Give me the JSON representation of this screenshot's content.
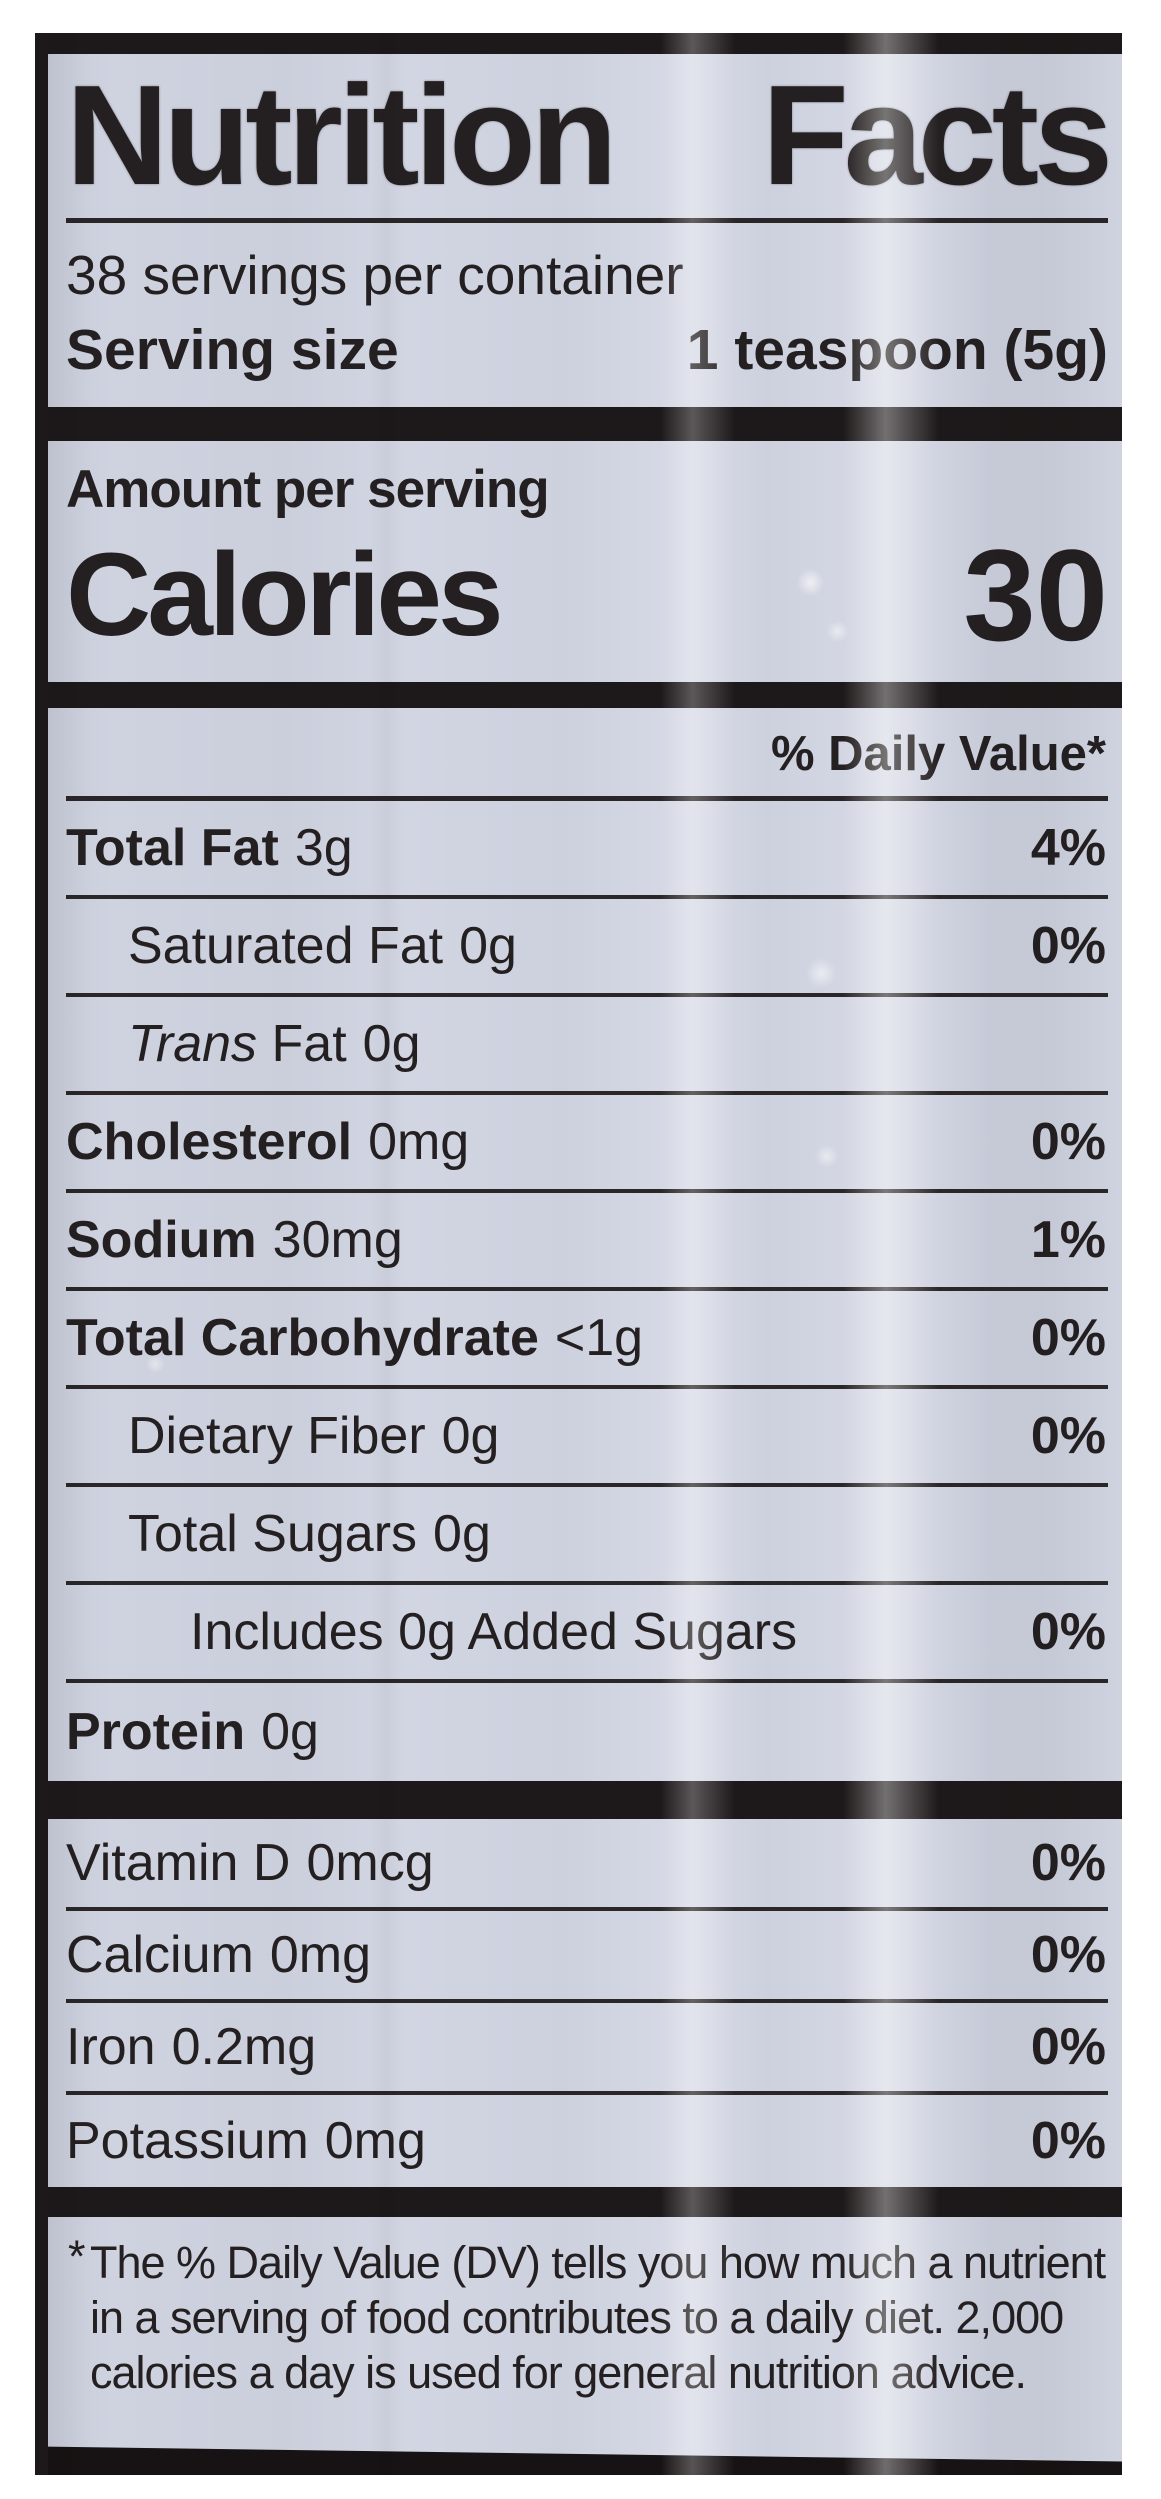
{
  "colors": {
    "page_background": "#ffffff",
    "label_background": "#cfd2df",
    "ink": "#241f20",
    "bar": "#1d1819"
  },
  "label": {
    "title": "Nutrition Facts",
    "servings_per_container": "38 servings per container",
    "serving_size": {
      "label": "Serving size",
      "value": "1 teaspoon (5g)"
    },
    "amount_per_serving": "Amount per serving",
    "calories": {
      "label": "Calories",
      "value": "30"
    },
    "daily_value_header": "% Daily Value*",
    "nutrients": [
      {
        "name": "Total Fat",
        "amount": "3g",
        "dv": "4%",
        "indent": 0,
        "bold": true
      },
      {
        "name": "Saturated Fat",
        "amount": "0g",
        "dv": "0%",
        "indent": 1,
        "bold": false
      },
      {
        "name_italic": "Trans",
        "name": "Fat",
        "amount": "0g",
        "dv": "",
        "indent": 1,
        "bold": false
      },
      {
        "name": "Cholesterol",
        "amount": "0mg",
        "dv": "0%",
        "indent": 0,
        "bold": true
      },
      {
        "name": "Sodium",
        "amount": "30mg",
        "dv": "1%",
        "indent": 0,
        "bold": true
      },
      {
        "name": "Total Carbohydrate",
        "amount": "<1g",
        "dv": "0%",
        "indent": 0,
        "bold": true
      },
      {
        "name": "Dietary Fiber",
        "amount": "0g",
        "dv": "0%",
        "indent": 1,
        "bold": false
      },
      {
        "name": "Total Sugars",
        "amount": "0g",
        "dv": "",
        "indent": 1,
        "bold": false
      },
      {
        "name": "Includes 0g Added Sugars",
        "amount": "",
        "dv": "0%",
        "indent": 2,
        "bold": false
      },
      {
        "name": "Protein",
        "amount": "0g",
        "dv": "",
        "indent": 0,
        "bold": true
      }
    ],
    "vitamins": [
      {
        "name": "Vitamin D",
        "amount": "0mcg",
        "dv": "0%",
        "indent": 0,
        "bold": false
      },
      {
        "name": "Calcium",
        "amount": "0mg",
        "dv": "0%",
        "indent": 0,
        "bold": false
      },
      {
        "name": "Iron",
        "amount": "0.2mg",
        "dv": "0%",
        "indent": 0,
        "bold": false
      },
      {
        "name": "Potassium",
        "amount": "0mg",
        "dv": "0%",
        "indent": 0,
        "bold": false
      }
    ],
    "footnote": {
      "asterisk": "*",
      "lines": [
        "The % Daily Value (DV) tells you how much a nutrient",
        "in a serving of food contributes to a daily diet. 2,000",
        "calories a day is used for general nutrition advice."
      ]
    }
  }
}
